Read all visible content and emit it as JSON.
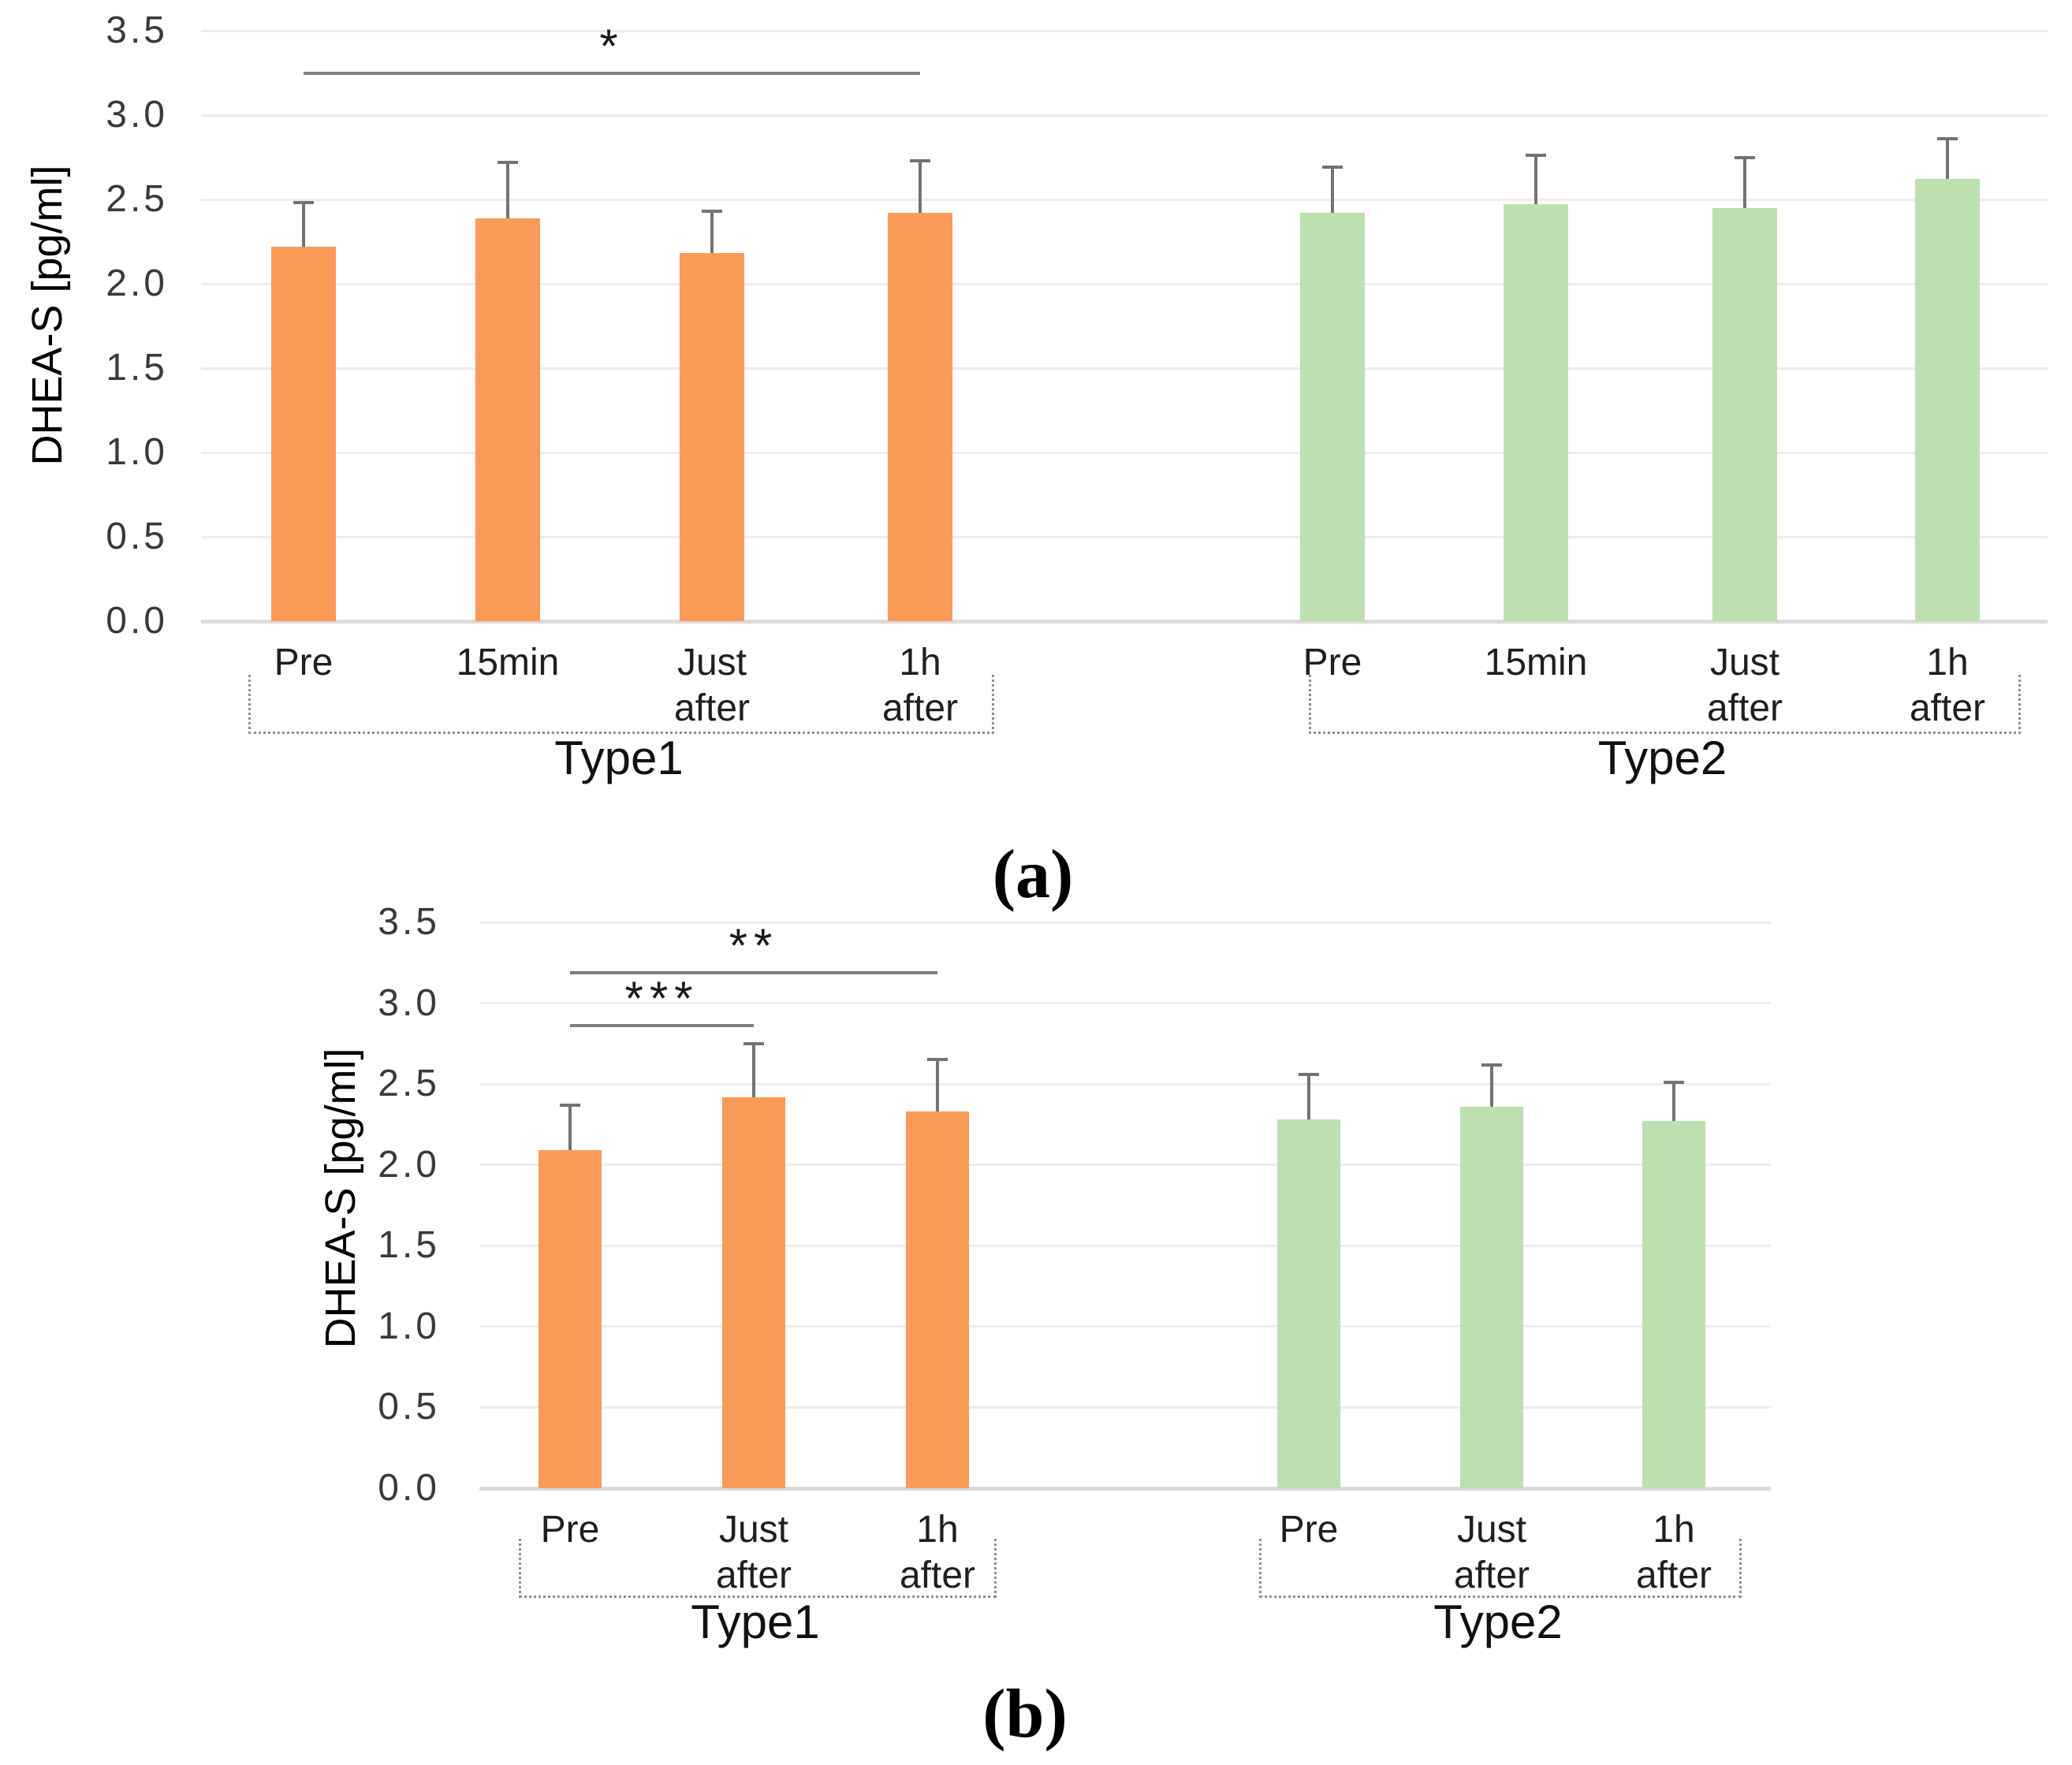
{
  "figure": {
    "background": "#ffffff",
    "gridline_color": "#ECECEC",
    "axis_line_color": "#DBDBDB",
    "error_bar_color": "#737373",
    "significance_line_color": "#7f7f7f",
    "bracket_color": "#8f8f8f",
    "orange": "#F99A57",
    "green": "#BCE0AF"
  },
  "chart_data": [
    {
      "type": "bar",
      "panel_label": "(a)",
      "title": "",
      "xlabel": "",
      "ylabel": "DHEA-S [pg/ml]",
      "ylim": [
        0.0,
        3.5
      ],
      "ystep": 0.5,
      "grid": true,
      "legend": "none",
      "groups": [
        {
          "label": "Type1",
          "color": "#F99A57",
          "categories": [
            "Pre",
            "15min",
            "Just\nafter",
            "1h\nafter"
          ],
          "values": [
            2.22,
            2.39,
            2.18,
            2.42
          ],
          "errors_up": [
            0.26,
            0.33,
            0.25,
            0.31
          ]
        },
        {
          "label": "Type2",
          "color": "#BCE0AF",
          "categories": [
            "Pre",
            "15min",
            "Just\nafter",
            "1h\nafter"
          ],
          "values": [
            2.42,
            2.47,
            2.45,
            2.62
          ],
          "errors_up": [
            0.27,
            0.29,
            0.3,
            0.24
          ]
        }
      ],
      "significance": [
        {
          "label": "*",
          "group_from": 0,
          "bar_from": 0,
          "group_to": 0,
          "bar_to": 3,
          "y": 3.25
        }
      ]
    },
    {
      "type": "bar",
      "panel_label": "(b)",
      "title": "",
      "xlabel": "",
      "ylabel": "DHEA-S [pg/ml]",
      "ylim": [
        0.0,
        3.5
      ],
      "ystep": 0.5,
      "grid": true,
      "legend": "none",
      "groups": [
        {
          "label": "Type1",
          "color": "#F99A57",
          "categories": [
            "Pre",
            "Just\nafter",
            "1h\nafter"
          ],
          "values": [
            2.09,
            2.42,
            2.33
          ],
          "errors_up": [
            0.28,
            0.33,
            0.32
          ]
        },
        {
          "label": "Type2",
          "color": "#BCE0AF",
          "categories": [
            "Pre",
            "Just\nafter",
            "1h\nafter"
          ],
          "values": [
            2.28,
            2.36,
            2.27
          ],
          "errors_up": [
            0.28,
            0.26,
            0.24
          ]
        }
      ],
      "significance": [
        {
          "label": "***",
          "group_from": 0,
          "bar_from": 0,
          "group_to": 0,
          "bar_to": 1,
          "y": 2.86
        },
        {
          "label": "**",
          "group_from": 0,
          "bar_from": 0,
          "group_to": 0,
          "bar_to": 2,
          "y": 3.19
        }
      ]
    }
  ]
}
